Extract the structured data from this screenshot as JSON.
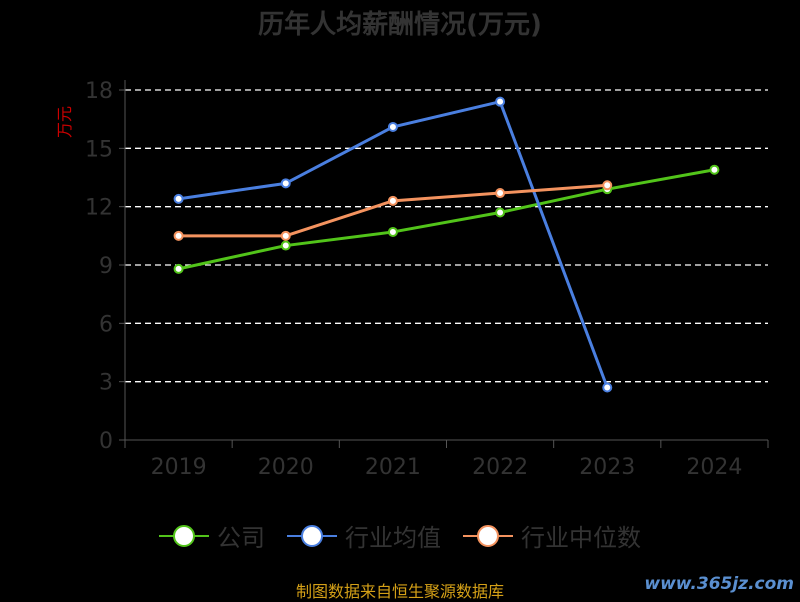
{
  "chart_data": {
    "type": "line",
    "title": "历年人均薪酬情况(万元)",
    "ylabel": "万元",
    "categories": [
      "2019",
      "2020",
      "2021",
      "2022",
      "2023",
      "2024"
    ],
    "ylim": [
      0,
      18
    ],
    "yticks": [
      0,
      3,
      6,
      9,
      12,
      15,
      18
    ],
    "grid": true,
    "legend_position": "bottom",
    "series": [
      {
        "name": "公司",
        "color": "#52c41a",
        "values": [
          8.8,
          10.0,
          10.7,
          11.7,
          12.9,
          13.9
        ]
      },
      {
        "name": "行业均值",
        "color": "#4a7fe0",
        "values": [
          12.4,
          13.2,
          16.1,
          17.4,
          2.7,
          null
        ]
      },
      {
        "name": "行业中位数",
        "color": "#f4935f",
        "values": [
          10.5,
          10.5,
          12.3,
          12.7,
          13.1,
          null
        ]
      }
    ]
  },
  "footer": {
    "source": "制图数据来自恒生聚源数据库",
    "watermark": "www.365jz.com"
  }
}
